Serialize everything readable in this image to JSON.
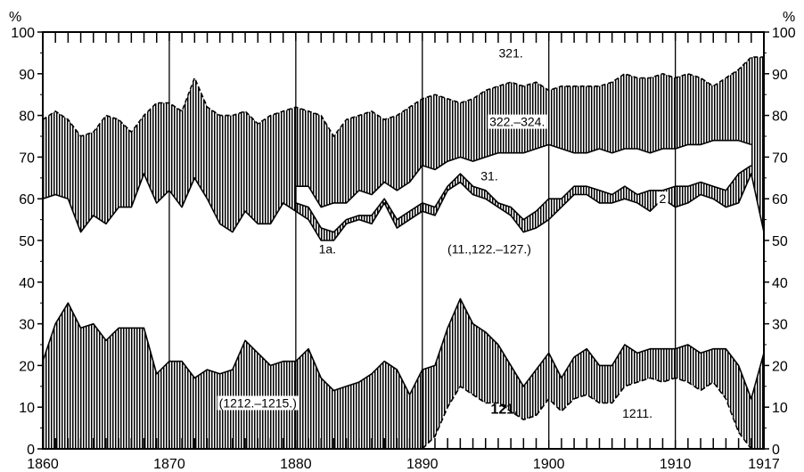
{
  "chart_data": {
    "type": "area",
    "title": "",
    "xlabel": "",
    "ylabel": "%",
    "xlim": [
      1860,
      1917
    ],
    "ylim": [
      0,
      100
    ],
    "x_ticks": [
      "1860",
      "1870",
      "1880",
      "1890",
      "1900",
      "1910",
      "1917"
    ],
    "y_ticks": [
      "0",
      "10",
      "20",
      "30",
      "40",
      "50",
      "60",
      "70",
      "80",
      "90",
      "100"
    ],
    "unit_left": "%",
    "unit_right": "%",
    "grid": "vertical lines at decade marks",
    "series": [
      {
        "name": "(1212.–1215.)",
        "style": "upper boundary of bottom hatched band (from 0)",
        "x": [
          1860,
          1861,
          1862,
          1863,
          1864,
          1865,
          1866,
          1867,
          1868,
          1869,
          1870,
          1871,
          1872,
          1873,
          1874,
          1875,
          1876,
          1877,
          1878,
          1879,
          1880,
          1881,
          1882,
          1883,
          1884,
          1885,
          1886,
          1887,
          1888,
          1889,
          1890,
          1891,
          1892,
          1893,
          1894,
          1895,
          1896,
          1897,
          1898,
          1899,
          1900,
          1901,
          1902,
          1903,
          1904,
          1905,
          1906,
          1907,
          1908,
          1909,
          1910,
          1911,
          1912,
          1913,
          1914,
          1915,
          1916,
          1917
        ],
        "values": [
          21,
          30,
          35,
          29,
          30,
          26,
          29,
          29,
          29,
          18,
          21,
          21,
          17,
          19,
          18,
          19,
          26,
          23,
          20,
          21,
          21,
          24,
          17,
          14,
          15,
          16,
          18,
          21,
          19,
          13,
          19,
          20,
          29,
          36,
          30,
          28,
          25,
          20,
          15,
          19,
          23,
          17,
          22,
          24,
          20,
          20,
          25,
          23,
          24,
          24,
          24,
          25,
          23,
          24,
          24,
          20,
          12,
          23
        ]
      },
      {
        "name": "121.",
        "style": "dashed boundary, 1890–1916",
        "x": [
          1890,
          1891,
          1892,
          1893,
          1894,
          1895,
          1896,
          1897,
          1898,
          1899,
          1900,
          1901,
          1902,
          1903,
          1904,
          1905,
          1906,
          1907,
          1908,
          1909,
          1910,
          1911,
          1912,
          1913,
          1914,
          1915,
          1916
        ],
        "values": [
          0,
          3,
          10,
          15,
          13,
          11,
          11,
          9,
          7,
          8,
          12,
          9,
          12,
          13,
          11,
          11,
          15,
          16,
          17,
          16,
          17,
          16,
          14,
          16,
          12,
          4,
          0
        ]
      },
      {
        "name": "1a.",
        "style": "solid line, lower boundary of middle hatched bands",
        "x": [
          1860,
          1861,
          1862,
          1863,
          1864,
          1865,
          1866,
          1867,
          1868,
          1869,
          1870,
          1871,
          1872,
          1873,
          1874,
          1875,
          1876,
          1877,
          1878,
          1879,
          1880,
          1881,
          1882,
          1883,
          1884,
          1885,
          1886,
          1887,
          1888,
          1889,
          1890,
          1891,
          1892,
          1893,
          1894,
          1895,
          1896,
          1897,
          1898,
          1899,
          1900,
          1901,
          1902,
          1903,
          1904,
          1905,
          1906,
          1907,
          1908,
          1909,
          1910,
          1911,
          1912,
          1913,
          1914,
          1915,
          1916,
          1917
        ],
        "values": [
          60,
          61,
          60,
          52,
          56,
          54,
          58,
          58,
          66,
          59,
          62,
          58,
          65,
          60,
          54,
          52,
          57,
          54,
          54,
          59,
          57,
          55,
          50,
          50,
          54,
          55,
          54,
          59,
          53,
          55,
          57,
          56,
          62,
          64,
          61,
          60,
          58,
          56,
          52,
          53,
          55,
          58,
          61,
          61,
          59,
          59,
          60,
          59,
          57,
          60,
          58,
          59,
          61,
          60,
          58,
          59,
          66,
          52
        ]
      },
      {
        "name": "2",
        "style": "solid line, upper boundary of band 2 (1880–)",
        "x": [
          1880,
          1881,
          1882,
          1883,
          1884,
          1885,
          1886,
          1887,
          1888,
          1889,
          1890,
          1891,
          1892,
          1893,
          1894,
          1895,
          1896,
          1897,
          1898,
          1899,
          1900,
          1901,
          1902,
          1903,
          1904,
          1905,
          1906,
          1907,
          1908,
          1909,
          1910,
          1911,
          1912,
          1913,
          1914,
          1915,
          1916
        ],
        "values": [
          59,
          58,
          53,
          52,
          55,
          56,
          56,
          60,
          55,
          57,
          59,
          58,
          63,
          66,
          63,
          62,
          59,
          58,
          55,
          57,
          60,
          60,
          63,
          63,
          62,
          61,
          63,
          61,
          62,
          62,
          63,
          63,
          64,
          63,
          62,
          66,
          68
        ]
      },
      {
        "name": "31.",
        "style": "solid line, upper boundary of white band 31 (1880–)",
        "x": [
          1880,
          1881,
          1882,
          1883,
          1884,
          1885,
          1886,
          1887,
          1888,
          1889,
          1890,
          1891,
          1892,
          1893,
          1894,
          1895,
          1896,
          1897,
          1898,
          1899,
          1900,
          1901,
          1902,
          1903,
          1904,
          1905,
          1906,
          1907,
          1908,
          1909,
          1910,
          1911,
          1912,
          1913,
          1914,
          1915,
          1916
        ],
        "values": [
          63,
          63,
          58,
          59,
          59,
          62,
          61,
          64,
          62,
          64,
          68,
          67,
          69,
          70,
          69,
          70,
          71,
          71,
          71,
          72,
          73,
          72,
          71,
          71,
          72,
          71,
          72,
          72,
          71,
          72,
          72,
          73,
          73,
          74,
          74,
          74,
          73
        ]
      },
      {
        "name": "322.–324.",
        "style": "dashed line, upper boundary of upper hatched band",
        "x": [
          1860,
          1861,
          1862,
          1863,
          1864,
          1865,
          1866,
          1867,
          1868,
          1869,
          1870,
          1871,
          1872,
          1873,
          1874,
          1875,
          1876,
          1877,
          1878,
          1879,
          1880,
          1881,
          1882,
          1883,
          1884,
          1885,
          1886,
          1887,
          1888,
          1889,
          1890,
          1891,
          1892,
          1893,
          1894,
          1895,
          1896,
          1897,
          1898,
          1899,
          1900,
          1901,
          1902,
          1903,
          1904,
          1905,
          1906,
          1907,
          1908,
          1909,
          1910,
          1911,
          1912,
          1913,
          1914,
          1915,
          1916,
          1917
        ],
        "values": [
          79,
          81,
          79,
          75,
          76,
          80,
          79,
          76,
          80,
          83,
          83,
          81,
          89,
          82,
          80,
          80,
          81,
          78,
          80,
          81,
          82,
          81,
          80,
          75,
          79,
          80,
          81,
          79,
          80,
          82,
          84,
          85,
          84,
          83,
          84,
          86,
          87,
          88,
          87,
          88,
          86,
          87,
          87,
          87,
          87,
          88,
          90,
          89,
          89,
          90,
          89,
          90,
          89,
          87,
          89,
          91,
          94,
          94
        ]
      },
      {
        "name": "321.",
        "style": "white area above dashed line up to 100%",
        "x": [],
        "values": []
      }
    ],
    "annotations": [
      {
        "text": "321.",
        "x": 1897,
        "y": 95
      },
      {
        "text": "322.–324.",
        "x": 1897.5,
        "y": 78.5
      },
      {
        "text": "31.",
        "x": 1895.3,
        "y": 65.5
      },
      {
        "text": "2",
        "x": 1909,
        "y": 60
      },
      {
        "text": "1a.",
        "x": 1882.5,
        "y": 48
      },
      {
        "text": "(11.,122.–127.)",
        "x": 1895.3,
        "y": 48
      },
      {
        "text": "(1212.–1215.)",
        "x": 1877,
        "y": 11
      },
      {
        "text": "121.",
        "x": 1896.5,
        "y": 9.5
      },
      {
        "text": "1211.",
        "x": 1907,
        "y": 8.5
      }
    ]
  }
}
